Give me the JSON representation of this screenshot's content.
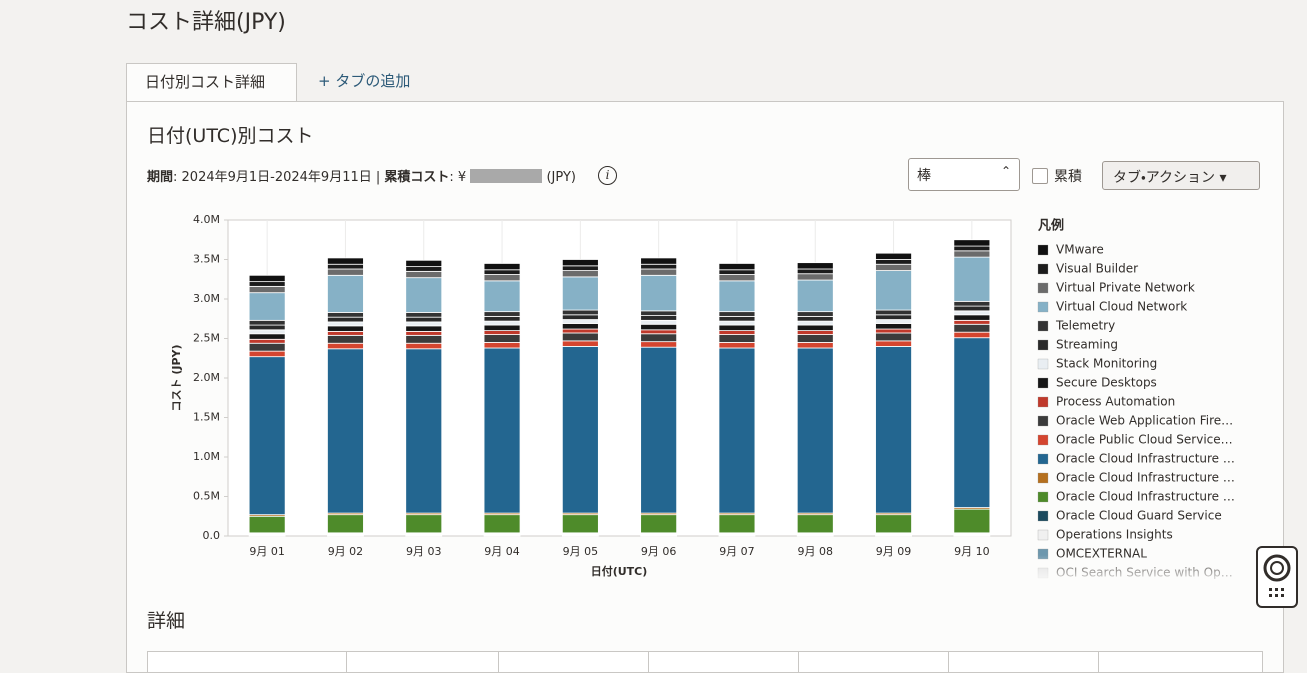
{
  "header": {
    "title": "コスト詳細(JPY)"
  },
  "tabs": [
    "日付別コスト詳細",
    "+ タブの追加"
  ],
  "panel": {
    "title": "日付(UTC)別コスト",
    "period_label": "期間",
    "period_value": ": 2024年9月1日-2024年9月11日 | ",
    "cumulative_label": "累積コスト",
    "cumulative_prefix": ": ¥",
    "cumulative_unit": "(JPY)",
    "chart_select": "棒",
    "cumulative_checkbox": "累積",
    "tab_actions": "タブ・アクション",
    "details_title": "詳細"
  },
  "chart_data": {
    "type": "stacked_bar",
    "y_label": "コスト (JPY)",
    "x_label": "日付(UTC)",
    "legend_title": "凡例",
    "legend_position": "right",
    "categories": [
      "9月 01",
      "9月 02",
      "9月 03",
      "9月 04",
      "9月 05",
      "9月 06",
      "9月 07",
      "9月 08",
      "9月 09",
      "9月 10"
    ],
    "ylim": [
      0,
      4000000
    ],
    "yticks": [
      {
        "value": 0,
        "label": "0.0"
      },
      {
        "value": 500000,
        "label": "0.5M"
      },
      {
        "value": 1000000,
        "label": "1.0M"
      },
      {
        "value": 1500000,
        "label": "1.5M"
      },
      {
        "value": 2000000,
        "label": "2.0M"
      },
      {
        "value": 2500000,
        "label": "2.5M"
      },
      {
        "value": 3000000,
        "label": "3.0M"
      },
      {
        "value": 3500000,
        "label": "3.5M"
      },
      {
        "value": 4000000,
        "label": "4.0M"
      }
    ],
    "series": [
      {
        "name": "VMware",
        "color": "#111111",
        "values": [
          80000,
          80000,
          80000,
          80000,
          80000,
          80000,
          80000,
          80000,
          80000,
          80000
        ]
      },
      {
        "name": "Visual Builder",
        "color": "#1c1c1c",
        "values": [
          60000,
          60000,
          60000,
          60000,
          60000,
          60000,
          60000,
          60000,
          60000,
          60000
        ]
      },
      {
        "name": "Virtual Private Network",
        "color": "#6b6b6b",
        "values": [
          80000,
          80000,
          80000,
          80000,
          80000,
          80000,
          80000,
          80000,
          80000,
          80000
        ]
      },
      {
        "name": "Virtual Cloud Network",
        "color": "#86b1c6",
        "values": [
          350000,
          470000,
          440000,
          390000,
          420000,
          450000,
          390000,
          400000,
          500000,
          560000
        ]
      },
      {
        "name": "Telemetry",
        "color": "#333333",
        "values": [
          60000,
          60000,
          60000,
          60000,
          60000,
          60000,
          60000,
          60000,
          60000,
          60000
        ]
      },
      {
        "name": "Streaming",
        "color": "#2a2a2a",
        "values": [
          60000,
          60000,
          60000,
          60000,
          60000,
          60000,
          60000,
          60000,
          60000,
          60000
        ]
      },
      {
        "name": "Stack Monitoring",
        "color": "#e9eef2",
        "values": [
          50000,
          50000,
          50000,
          50000,
          50000,
          50000,
          50000,
          50000,
          50000,
          50000
        ]
      },
      {
        "name": "Secure Desktops",
        "color": "#161616",
        "values": [
          70000,
          70000,
          70000,
          70000,
          70000,
          70000,
          70000,
          70000,
          70000,
          70000
        ]
      },
      {
        "name": "Process Automation",
        "color": "#c0392b",
        "values": [
          50000,
          50000,
          50000,
          50000,
          50000,
          50000,
          50000,
          50000,
          50000,
          50000
        ]
      },
      {
        "name": "Oracle Web Application Fire…",
        "color": "#3b3b3b",
        "values": [
          100000,
          100000,
          100000,
          100000,
          100000,
          100000,
          100000,
          100000,
          100000,
          100000
        ]
      },
      {
        "name": "Oracle Public Cloud Service…",
        "color": "#d4452f",
        "values": [
          70000,
          70000,
          70000,
          70000,
          70000,
          70000,
          70000,
          70000,
          70000,
          70000
        ]
      },
      {
        "name": "Oracle Cloud Infrastructure …",
        "color": "#236690",
        "values": [
          2000000,
          2080000,
          2080000,
          2090000,
          2110000,
          2100000,
          2090000,
          2090000,
          2110000,
          2150000
        ]
      },
      {
        "name": "Oracle Cloud Infrastructure …",
        "color": "#b5701f",
        "values": [
          20000,
          20000,
          20000,
          20000,
          20000,
          20000,
          20000,
          20000,
          20000,
          20000
        ]
      },
      {
        "name": "Oracle Cloud Infrastructure …",
        "color": "#4e8b2a",
        "values": [
          210000,
          230000,
          230000,
          230000,
          230000,
          230000,
          230000,
          230000,
          230000,
          300000
        ]
      },
      {
        "name": "Oracle Cloud Guard Service",
        "color": "#1b4a5e",
        "values": [
          10000,
          10000,
          10000,
          10000,
          10000,
          10000,
          10000,
          10000,
          10000,
          10000
        ]
      },
      {
        "name": "Operations Insights",
        "color": "#f0f0f0",
        "values": [
          10000,
          10000,
          10000,
          10000,
          10000,
          10000,
          10000,
          10000,
          10000,
          10000
        ]
      },
      {
        "name": "OMCEXTERNAL",
        "color": "#6d97ad",
        "values": [
          10000,
          10000,
          10000,
          10000,
          10000,
          10000,
          10000,
          10000,
          10000,
          10000
        ]
      },
      {
        "name": "OCI Search Service with Op…",
        "color": "#dddddd",
        "values": [
          10000,
          10000,
          10000,
          10000,
          10000,
          10000,
          10000,
          10000,
          10000,
          10000
        ]
      }
    ]
  }
}
